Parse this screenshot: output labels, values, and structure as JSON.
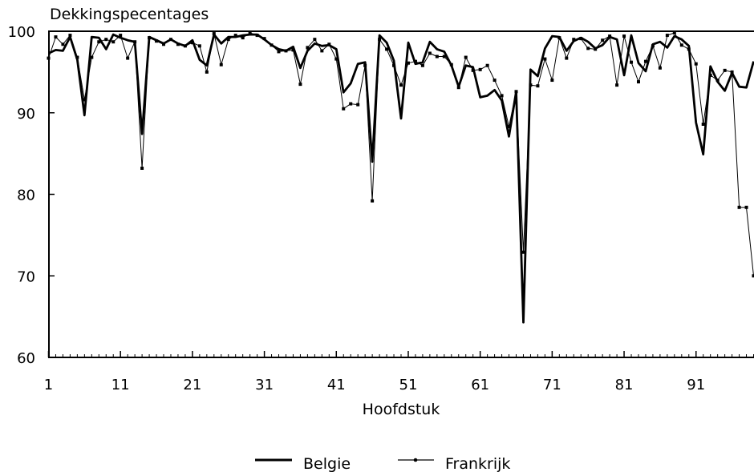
{
  "chart_data": {
    "type": "line",
    "ylabel": "Dekkingspecentages",
    "xlabel": "Hoofdstuk",
    "xlim": [
      1,
      99
    ],
    "ylim": [
      60,
      100
    ],
    "xticks": [
      1,
      11,
      21,
      31,
      41,
      51,
      61,
      71,
      81,
      91
    ],
    "yticks": [
      60,
      70,
      80,
      90,
      100
    ],
    "grid": false,
    "legend": "bottom",
    "x": [
      1,
      2,
      3,
      4,
      5,
      6,
      7,
      8,
      9,
      10,
      11,
      12,
      13,
      14,
      15,
      16,
      17,
      18,
      19,
      20,
      21,
      22,
      23,
      24,
      25,
      26,
      27,
      28,
      29,
      30,
      31,
      32,
      33,
      34,
      35,
      36,
      37,
      38,
      39,
      40,
      41,
      42,
      43,
      44,
      45,
      46,
      47,
      48,
      49,
      50,
      51,
      52,
      53,
      54,
      55,
      56,
      57,
      58,
      59,
      60,
      61,
      62,
      63,
      64,
      65,
      66,
      67,
      68,
      69,
      70,
      71,
      72,
      73,
      74,
      75,
      76,
      77,
      78,
      79,
      80,
      81,
      82,
      83,
      84,
      85,
      86,
      87,
      88,
      89,
      90,
      91,
      92,
      93,
      94,
      95,
      96,
      97,
      98,
      99
    ],
    "series": [
      {
        "name": "Belgie",
        "values": [
          97.3,
          97.7,
          97.6,
          99.3,
          96.5,
          89.7,
          99.3,
          99.2,
          97.8,
          99.6,
          99.2,
          98.9,
          98.7,
          87.4,
          99.3,
          98.9,
          98.5,
          99.0,
          98.5,
          98.2,
          98.9,
          96.5,
          95.8,
          99.6,
          98.5,
          99.3,
          99.3,
          99.5,
          99.6,
          99.6,
          99.0,
          98.3,
          97.8,
          97.6,
          98.1,
          95.5,
          97.6,
          98.5,
          98.2,
          98.3,
          97.8,
          92.5,
          93.6,
          96.0,
          96.2,
          84.0,
          99.5,
          98.6,
          96.4,
          89.3,
          98.6,
          96.0,
          96.2,
          98.7,
          97.8,
          97.5,
          95.8,
          93.2,
          95.8,
          95.6,
          91.9,
          92.1,
          92.8,
          91.5,
          87.1,
          92.6,
          64.3,
          95.3,
          94.5,
          97.9,
          99.4,
          99.3,
          97.6,
          98.8,
          99.2,
          98.7,
          97.9,
          98.3,
          99.3,
          99.0,
          94.6,
          99.5,
          96.1,
          95.1,
          98.4,
          98.7,
          98.0,
          99.4,
          99.0,
          98.2,
          88.8,
          84.9,
          95.7,
          93.8,
          92.7,
          94.9,
          93.2,
          93.1,
          96.3
        ]
      },
      {
        "name": "Frankrijk",
        "values": [
          96.7,
          99.3,
          98.4,
          99.5,
          96.8,
          91.6,
          96.8,
          98.7,
          99.0,
          98.7,
          99.5,
          96.7,
          98.7,
          83.2,
          99.2,
          98.8,
          98.4,
          99.0,
          98.4,
          98.2,
          98.6,
          98.2,
          95.0,
          99.7,
          95.9,
          99.0,
          99.5,
          99.2,
          99.8,
          99.5,
          99.1,
          98.3,
          97.5,
          97.6,
          97.7,
          93.5,
          98.0,
          99.0,
          97.6,
          98.4,
          96.6,
          90.5,
          91.1,
          91.0,
          95.8,
          79.2,
          99.0,
          97.8,
          95.8,
          93.4,
          96.1,
          96.3,
          95.8,
          97.3,
          96.9,
          96.9,
          95.9,
          93.1,
          96.8,
          95.2,
          95.3,
          95.8,
          94.0,
          92.1,
          88.3,
          92.6,
          72.9,
          93.4,
          93.3,
          96.6,
          94.0,
          99.2,
          96.7,
          99.0,
          99.1,
          97.9,
          97.8,
          98.9,
          99.4,
          93.4,
          99.4,
          96.2,
          93.8,
          96.3,
          98.2,
          95.5,
          99.5,
          99.8,
          98.3,
          97.8,
          96.0,
          88.6,
          94.6,
          94.0,
          95.2,
          95.0,
          78.4,
          78.4,
          70.0
        ]
      }
    ]
  }
}
